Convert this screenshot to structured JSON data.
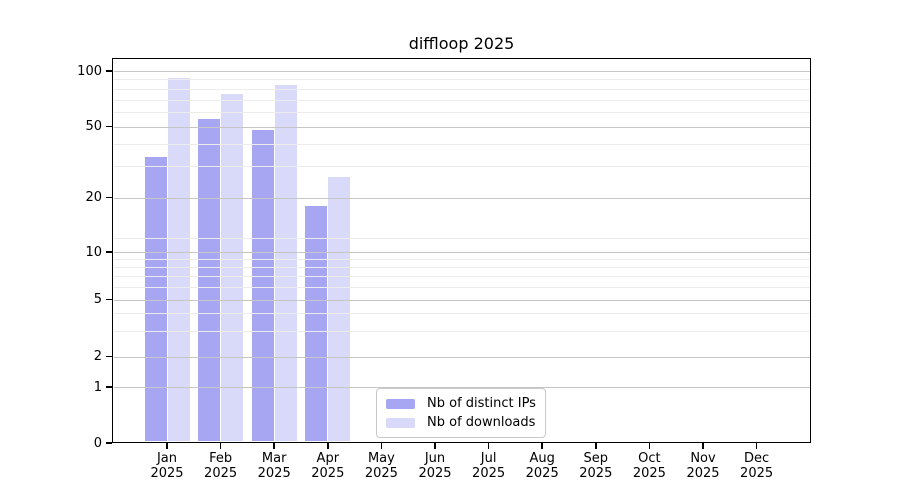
{
  "title": "diffloop 2025",
  "chart_data": {
    "type": "bar",
    "title": "diffloop 2025",
    "months": [
      "Jan",
      "Feb",
      "Mar",
      "Apr",
      "May",
      "Jun",
      "Jul",
      "Aug",
      "Sep",
      "Oct",
      "Nov",
      "Dec"
    ],
    "year_label": "2025",
    "series": [
      {
        "name": "Nb of distinct IPs",
        "color": "#a6a6f2",
        "values": [
          34,
          55,
          48,
          18,
          null,
          null,
          null,
          null,
          null,
          null,
          null,
          null
        ]
      },
      {
        "name": "Nb of downloads",
        "color": "#d9d9f9",
        "values": [
          92,
          75,
          84,
          26,
          null,
          null,
          null,
          null,
          null,
          null,
          null,
          null
        ]
      }
    ],
    "y_ticks": [
      0,
      1,
      2,
      5,
      10,
      20,
      50,
      100
    ],
    "minor_gridlines": [
      3,
      4,
      6,
      7,
      8,
      9,
      12,
      30,
      40,
      60,
      70,
      80,
      90
    ],
    "y_scale": "symlog",
    "ylim": [
      0,
      117
    ],
    "grid": true,
    "legend_position": "lower center"
  },
  "colors": {
    "bar_distinct_ips": "#a6a6f2",
    "bar_downloads": "#d9d9f9",
    "grid_major": "#c6c6c6",
    "grid_minor": "#ececec",
    "axis": "#000000",
    "legend_border": "#c9c9c9",
    "background": "#ffffff"
  }
}
